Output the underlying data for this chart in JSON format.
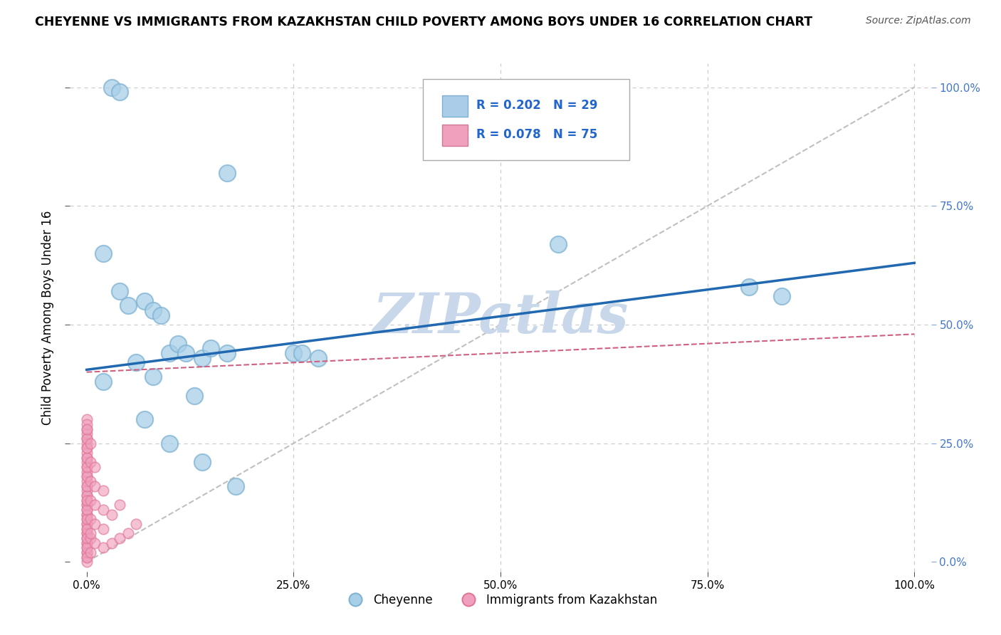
{
  "title": "CHEYENNE VS IMMIGRANTS FROM KAZAKHSTAN CHILD POVERTY AMONG BOYS UNDER 16 CORRELATION CHART",
  "source": "Source: ZipAtlas.com",
  "ylabel": "Child Poverty Among Boys Under 16",
  "xlim": [
    -0.02,
    1.02
  ],
  "ylim": [
    -0.02,
    1.05
  ],
  "xticks": [
    0.0,
    0.25,
    0.5,
    0.75,
    1.0
  ],
  "yticks": [
    0.0,
    0.25,
    0.5,
    0.75,
    1.0
  ],
  "xticklabels": [
    "0.0%",
    "25.0%",
    "50.0%",
    "75.0%",
    "100.0%"
  ],
  "yticklabels_left": [
    "",
    "",
    "",
    "",
    ""
  ],
  "yticklabels_right": [
    "0.0%",
    "25.0%",
    "50.0%",
    "75.0%",
    "100.0%"
  ],
  "cheyenne_color": "#a8cfe8",
  "cheyenne_edge": "#7fb3d3",
  "kazakhstan_color": "#f0a0be",
  "kazakhstan_edge": "#e07898",
  "cheyenne_R": 0.202,
  "cheyenne_N": 29,
  "kazakhstan_R": 0.078,
  "kazakhstan_N": 75,
  "cheyenne_line_color": "#2068b0",
  "kazakhstan_line_color": "#d06080",
  "grid_color": "#cccccc",
  "diag_color": "#c0c0c0",
  "watermark": "ZIPatlas",
  "watermark_color": "#c8d8ea",
  "cheyenne_x": [
    0.03,
    0.04,
    0.17,
    0.02,
    0.04,
    0.05,
    0.07,
    0.08,
    0.09,
    0.1,
    0.11,
    0.12,
    0.14,
    0.15,
    0.17,
    0.25,
    0.26,
    0.28,
    0.57,
    0.8,
    0.84,
    0.02,
    0.06,
    0.08,
    0.13,
    0.07,
    0.1,
    0.14,
    0.18
  ],
  "cheyenne_y": [
    1.0,
    0.99,
    0.82,
    0.65,
    0.57,
    0.54,
    0.55,
    0.53,
    0.52,
    0.44,
    0.46,
    0.44,
    0.43,
    0.45,
    0.44,
    0.44,
    0.44,
    0.43,
    0.67,
    0.58,
    0.56,
    0.38,
    0.42,
    0.39,
    0.35,
    0.3,
    0.25,
    0.21,
    0.16
  ],
  "kazakhstan_x": [
    0.0,
    0.0,
    0.0,
    0.0,
    0.0,
    0.0,
    0.0,
    0.0,
    0.0,
    0.0,
    0.0,
    0.0,
    0.0,
    0.0,
    0.0,
    0.0,
    0.0,
    0.0,
    0.0,
    0.0,
    0.0,
    0.0,
    0.0,
    0.0,
    0.0,
    0.0,
    0.0,
    0.0,
    0.0,
    0.0,
    0.0,
    0.0,
    0.0,
    0.0,
    0.0,
    0.0,
    0.0,
    0.0,
    0.0,
    0.0,
    0.0,
    0.0,
    0.0,
    0.0,
    0.0,
    0.0,
    0.0,
    0.0,
    0.0,
    0.0,
    0.0,
    0.0,
    0.005,
    0.005,
    0.005,
    0.005,
    0.005,
    0.005,
    0.005,
    0.005,
    0.01,
    0.01,
    0.01,
    0.01,
    0.01,
    0.02,
    0.02,
    0.02,
    0.02,
    0.03,
    0.03,
    0.04,
    0.04,
    0.05,
    0.06
  ],
  "kazakhstan_y": [
    0.3,
    0.28,
    0.26,
    0.24,
    0.22,
    0.2,
    0.18,
    0.16,
    0.14,
    0.12,
    0.1,
    0.08,
    0.06,
    0.04,
    0.02,
    0.01,
    0.03,
    0.05,
    0.07,
    0.09,
    0.11,
    0.13,
    0.15,
    0.17,
    0.19,
    0.21,
    0.23,
    0.25,
    0.27,
    0.29,
    0.0,
    0.02,
    0.04,
    0.06,
    0.08,
    0.1,
    0.12,
    0.14,
    0.16,
    0.18,
    0.2,
    0.22,
    0.24,
    0.26,
    0.28,
    0.01,
    0.03,
    0.05,
    0.07,
    0.09,
    0.11,
    0.13,
    0.05,
    0.09,
    0.13,
    0.17,
    0.21,
    0.25,
    0.02,
    0.06,
    0.04,
    0.08,
    0.12,
    0.16,
    0.2,
    0.03,
    0.07,
    0.11,
    0.15,
    0.04,
    0.1,
    0.05,
    0.12,
    0.06,
    0.08
  ],
  "cheyenne_line_x0": 0.0,
  "cheyenne_line_y0": 0.405,
  "cheyenne_line_x1": 1.0,
  "cheyenne_line_y1": 0.63,
  "kazakhstan_line_x0": 0.0,
  "kazakhstan_line_y0": 0.4,
  "kazakhstan_line_x1": 1.0,
  "kazakhstan_line_y1": 0.48
}
